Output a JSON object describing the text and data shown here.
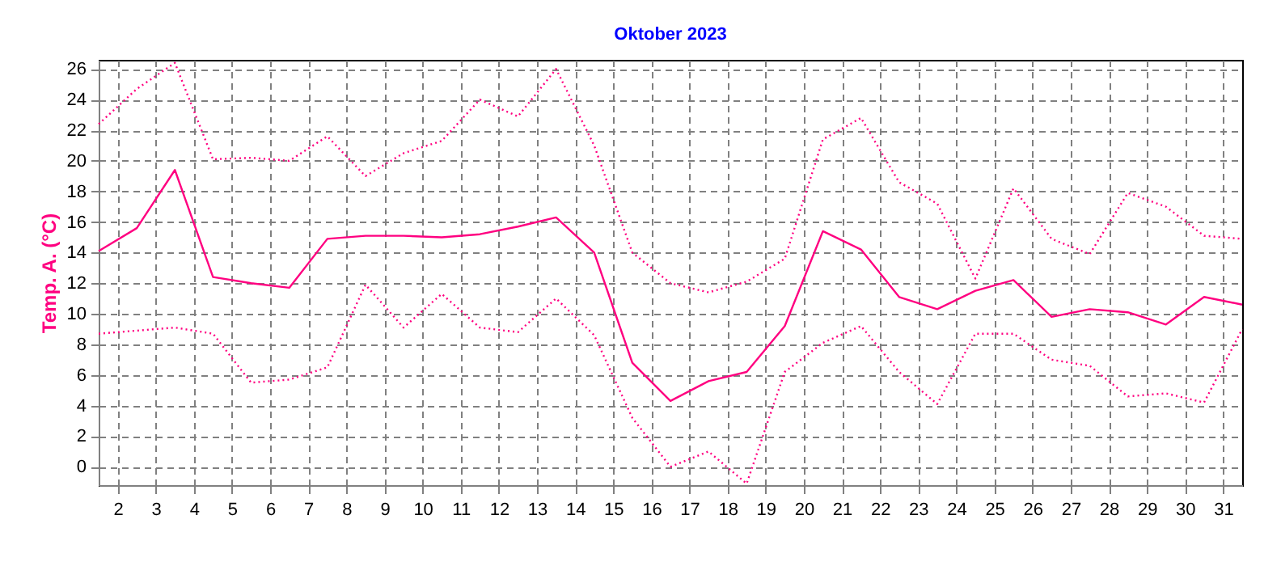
{
  "chart_data": {
    "type": "line",
    "title": "Oktober 2023",
    "ylabel": "Temp. A. (°C)",
    "x": [
      1.5,
      2.5,
      3.5,
      4.5,
      5.5,
      6.5,
      7.5,
      8.5,
      9.5,
      10.5,
      11.5,
      12.5,
      13.5,
      14.5,
      15.5,
      16.5,
      17.5,
      18.5,
      19.5,
      20.5,
      21.5,
      22.5,
      23.5,
      24.5,
      25.5,
      26.5,
      27.5,
      28.5,
      29.5,
      30.5,
      31.5
    ],
    "series": [
      {
        "color": "#ff0080",
        "line_style": "dotted",
        "values": [
          22.4,
          24.7,
          26.4,
          20.1,
          20.2,
          20.0,
          21.6,
          19.0,
          20.5,
          21.3,
          24.0,
          22.9,
          26.0,
          21.0,
          14.0,
          12.0,
          11.4,
          12.1,
          13.6,
          21.4,
          22.8,
          18.6,
          17.2,
          12.3,
          18.2,
          14.9,
          13.9,
          17.9,
          17.0,
          15.1,
          14.9
        ]
      },
      {
        "color": "#ff0080",
        "line_style": "solid",
        "values": [
          14.1,
          15.6,
          19.4,
          12.4,
          12.0,
          11.7,
          14.9,
          15.1,
          15.1,
          15.0,
          15.2,
          15.7,
          16.3,
          14.0,
          6.8,
          4.3,
          5.6,
          6.2,
          9.2,
          15.4,
          14.2,
          11.1,
          10.3,
          11.5,
          12.2,
          9.8,
          10.3,
          10.1,
          9.3,
          11.1,
          10.6
        ]
      },
      {
        "color": "#ff0080",
        "line_style": "dotted",
        "values": [
          8.7,
          8.9,
          9.1,
          8.7,
          5.5,
          5.7,
          6.5,
          11.9,
          9.1,
          11.3,
          9.1,
          8.8,
          11.0,
          8.6,
          3.2,
          0.0,
          1.0,
          -1.1,
          6.2,
          8.1,
          9.2,
          6.2,
          4.1,
          8.7,
          8.7,
          7.0,
          6.6,
          4.6,
          4.8,
          4.2,
          9.0
        ]
      }
    ],
    "xlim": [
      1.5,
      31.5
    ],
    "xticks": [
      2,
      3,
      4,
      5,
      6,
      7,
      8,
      9,
      10,
      11,
      12,
      13,
      14,
      15,
      16,
      17,
      18,
      19,
      20,
      21,
      22,
      23,
      24,
      25,
      26,
      27,
      28,
      29,
      30,
      31
    ],
    "ylim": [
      -1.2,
      26.6
    ],
    "yticks": [
      0,
      2,
      4,
      6,
      8,
      10,
      12,
      14,
      16,
      18,
      20,
      22,
      24,
      26
    ],
    "grid": true,
    "marker": "none"
  }
}
